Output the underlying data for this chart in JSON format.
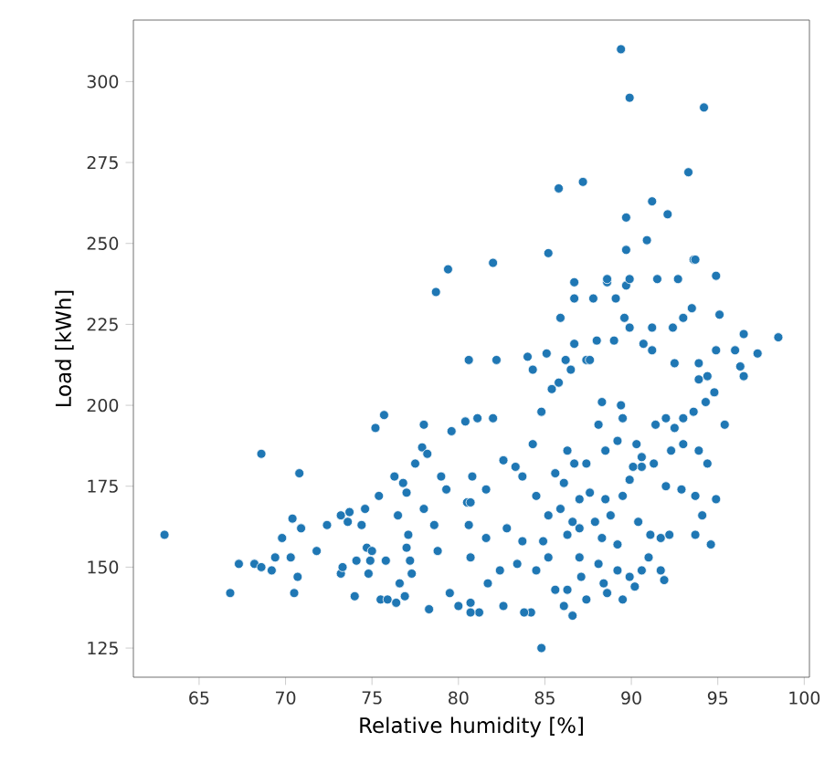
{
  "chart_data": {
    "type": "scatter",
    "xlabel": "Relative humidity [%]",
    "ylabel": "Load [kWh]",
    "xlim": [
      61.2,
      100.3
    ],
    "ylim": [
      116,
      319
    ],
    "xticks": [
      65,
      70,
      75,
      80,
      85,
      90,
      95,
      100
    ],
    "yticks": [
      125,
      150,
      175,
      200,
      225,
      250,
      275,
      300
    ],
    "grid": false,
    "series": [
      {
        "color": "#1f77b4",
        "x": [
          89.4,
          89.9,
          94.2,
          93.3,
          85.8,
          87.2,
          91.2,
          89.7,
          92.1,
          90.9,
          89.7,
          85.2,
          93.6,
          82.0,
          79.4,
          78.7,
          80.6,
          86.7,
          89.7,
          91.5,
          92.7,
          94.9,
          86.7,
          88.6,
          63.0,
          66.8,
          67.3,
          68.6,
          68.2,
          68.6,
          69.2,
          69.4,
          69.8,
          70.3,
          70.4,
          70.5,
          70.7,
          70.8,
          70.9,
          71.8,
          72.4,
          73.2,
          73.2,
          73.3,
          73.6,
          73.7,
          74.0,
          74.1,
          74.4,
          74.6,
          74.7,
          74.8,
          74.9,
          75.0,
          75.2,
          75.4,
          75.7,
          75.5,
          75.9,
          75.8,
          76.3,
          76.5,
          76.4,
          76.6,
          76.8,
          77.0,
          77.1,
          77.0,
          77.2,
          77.3,
          76.9,
          77.5,
          77.9,
          78.0,
          78.0,
          78.2,
          78.3,
          78.6,
          78.8,
          79.0,
          79.3,
          79.6,
          80.4,
          80.5,
          80.6,
          80.7,
          79.5,
          84.8,
          81.1,
          82.0,
          80.8,
          80.7,
          81.6,
          82.6,
          83.3,
          83.7,
          84.3,
          84.5,
          84.8,
          85.4,
          85.8,
          86.5,
          87.4,
          87.6,
          88.3,
          89.4,
          88.1,
          86.3,
          86.7,
          85.6,
          86.1,
          87.0,
          87.6,
          88.5,
          89.5,
          89.9,
          90.6,
          91.4,
          92.0,
          92.5,
          93.0,
          93.6,
          94.3,
          94.8,
          95.4,
          92.3,
          93.0,
          93.9,
          94.4,
          92.0,
          92.9,
          93.7,
          94.9,
          94.1,
          93.7,
          94.6,
          91.7,
          92.2,
          91.0,
          91.7,
          91.9,
          90.2,
          89.5,
          88.6,
          87.4,
          86.6,
          86.1,
          85.6,
          84.2,
          83.8,
          82.6,
          81.2,
          80.7,
          80.0,
          81.7,
          82.4,
          83.4,
          84.5,
          85.2,
          80.7,
          81.6,
          82.8,
          83.7,
          84.9,
          86.3,
          87.0,
          88.3,
          89.2,
          90.4,
          91.1,
          87.0,
          88.1,
          89.2,
          89.9,
          90.6,
          86.3,
          87.1,
          88.4,
          85.2,
          85.9,
          86.6,
          87.9,
          88.8,
          87.4,
          88.5,
          89.2,
          89.5,
          90.3,
          90.6,
          91.3,
          90.1,
          93.9,
          94.4,
          98.5,
          97.3,
          96.5,
          96.0,
          94.9,
          96.3,
          96.5,
          95.1,
          93.7,
          93.5,
          93.0,
          92.4,
          92.5,
          93.9,
          91.2,
          89.9,
          88.6,
          89.1,
          87.8,
          85.9,
          86.7,
          88.0,
          89.0,
          89.6,
          89.9,
          91.2,
          90.7,
          82.2,
          84.0,
          85.1,
          84.3,
          86.2
        ],
        "values": [
          310,
          295,
          292,
          272,
          267,
          269,
          263,
          258,
          259,
          251,
          248,
          247,
          245,
          244,
          242,
          235,
          214,
          238,
          237,
          239,
          239,
          240,
          233,
          238,
          160,
          142,
          151,
          185,
          151,
          150,
          149,
          153,
          159,
          153,
          165,
          142,
          147,
          179,
          162,
          155,
          163,
          166,
          148,
          150,
          164,
          167,
          141,
          152,
          163,
          168,
          156,
          148,
          152,
          155,
          193,
          172,
          197,
          140,
          140,
          152,
          178,
          166,
          139,
          145,
          176,
          173,
          160,
          156,
          152,
          148,
          141,
          182,
          187,
          194,
          168,
          185,
          137,
          163,
          155,
          178,
          174,
          192,
          195,
          170,
          163,
          139,
          142,
          125,
          196,
          196,
          178,
          170,
          174,
          183,
          181,
          178,
          188,
          172,
          198,
          205,
          207,
          211,
          214,
          214,
          201,
          200,
          194,
          186,
          182,
          179,
          176,
          171,
          173,
          171,
          172,
          177,
          181,
          194,
          196,
          193,
          196,
          198,
          201,
          204,
          194,
          186,
          188,
          186,
          182,
          175,
          174,
          172,
          171,
          166,
          160,
          157,
          159,
          160,
          153,
          149,
          146,
          144,
          140,
          142,
          140,
          135,
          138,
          143,
          136,
          136,
          138,
          136,
          136,
          138,
          145,
          149,
          151,
          149,
          153,
          153,
          159,
          162,
          158,
          158,
          160,
          162,
          159,
          157,
          164,
          160,
          153,
          151,
          149,
          147,
          149,
          143,
          147,
          145,
          166,
          168,
          164,
          164,
          166,
          182,
          186,
          189,
          196,
          188,
          184,
          182,
          181,
          208,
          209,
          221,
          216,
          222,
          217,
          217,
          212,
          209,
          228,
          245,
          230,
          227,
          224,
          213,
          213,
          224,
          239,
          239,
          233,
          233,
          227,
          219,
          220,
          220,
          227,
          224,
          217,
          219,
          214,
          215,
          216,
          211,
          214
        ]
      }
    ]
  }
}
